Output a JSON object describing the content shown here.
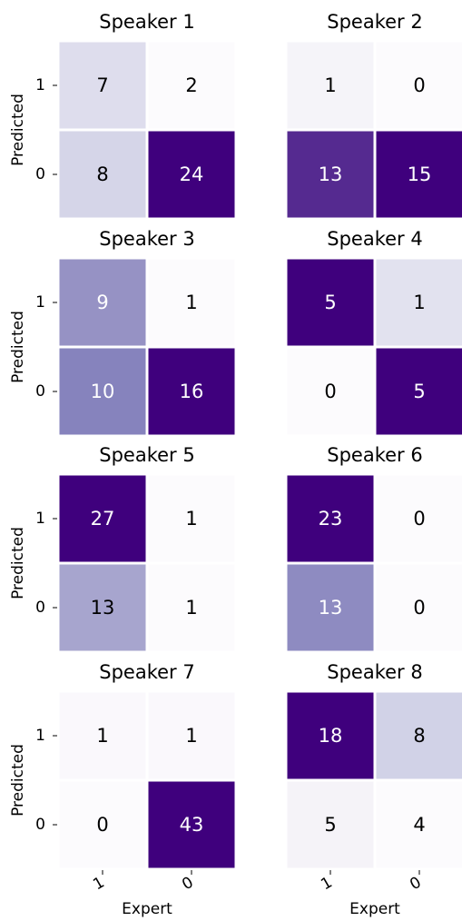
{
  "chart_data": [
    {
      "type": "heatmap",
      "title": "Speaker 1",
      "ylabel": "Predicted",
      "y_categories": [
        "1",
        "0"
      ],
      "values": [
        [
          7,
          2
        ],
        [
          8,
          24
        ]
      ],
      "colormap": [
        "#fcfbfd",
        "#efedf5",
        "#dadaeb",
        "#bcbddc",
        "#9e9ac8",
        "#807dba",
        "#6a51a3",
        "#54278f",
        "#3f007d"
      ]
    },
    {
      "type": "heatmap",
      "title": "Speaker 2",
      "values": [
        [
          1,
          0
        ],
        [
          13,
          15
        ]
      ],
      "colormap": [
        "#fcfbfd",
        "#efedf5",
        "#dadaeb",
        "#bcbddc",
        "#9e9ac8",
        "#807dba",
        "#6a51a3",
        "#54278f",
        "#3f007d"
      ]
    },
    {
      "type": "heatmap",
      "title": "Speaker 3",
      "ylabel": "Predicted",
      "y_categories": [
        "1",
        "0"
      ],
      "values": [
        [
          9,
          1
        ],
        [
          10,
          16
        ]
      ],
      "colormap": [
        "#fcfbfd",
        "#efedf5",
        "#dadaeb",
        "#bcbddc",
        "#9e9ac8",
        "#807dba",
        "#6a51a3",
        "#54278f",
        "#3f007d"
      ]
    },
    {
      "type": "heatmap",
      "title": "Speaker 4",
      "values": [
        [
          5,
          1
        ],
        [
          0,
          5
        ]
      ],
      "colormap": [
        "#fcfbfd",
        "#efedf5",
        "#dadaeb",
        "#bcbddc",
        "#9e9ac8",
        "#807dba",
        "#6a51a3",
        "#54278f",
        "#3f007d"
      ]
    },
    {
      "type": "heatmap",
      "title": "Speaker 5",
      "ylabel": "Predicted",
      "y_categories": [
        "1",
        "0"
      ],
      "values": [
        [
          27,
          1
        ],
        [
          13,
          1
        ]
      ],
      "colormap": [
        "#fcfbfd",
        "#efedf5",
        "#dadaeb",
        "#bcbddc",
        "#9e9ac8",
        "#807dba",
        "#6a51a3",
        "#54278f",
        "#3f007d"
      ]
    },
    {
      "type": "heatmap",
      "title": "Speaker 6",
      "values": [
        [
          23,
          0
        ],
        [
          13,
          0
        ]
      ],
      "colormap": [
        "#fcfbfd",
        "#efedf5",
        "#dadaeb",
        "#bcbddc",
        "#9e9ac8",
        "#807dba",
        "#6a51a3",
        "#54278f",
        "#3f007d"
      ]
    },
    {
      "type": "heatmap",
      "title": "Speaker 7",
      "ylabel": "Predicted",
      "xlabel": "Expert",
      "y_categories": [
        "1",
        "0"
      ],
      "x_categories": [
        "1",
        "0"
      ],
      "values": [
        [
          1,
          1
        ],
        [
          0,
          43
        ]
      ],
      "colormap": [
        "#fcfbfd",
        "#efedf5",
        "#dadaeb",
        "#bcbddc",
        "#9e9ac8",
        "#807dba",
        "#6a51a3",
        "#54278f",
        "#3f007d"
      ]
    },
    {
      "type": "heatmap",
      "title": "Speaker 8",
      "xlabel": "Expert",
      "x_categories": [
        "1",
        "0"
      ],
      "values": [
        [
          18,
          8
        ],
        [
          5,
          4
        ]
      ],
      "colormap": [
        "#fcfbfd",
        "#efedf5",
        "#dadaeb",
        "#bcbddc",
        "#9e9ac8",
        "#807dba",
        "#6a51a3",
        "#54278f",
        "#3f007d"
      ]
    }
  ]
}
